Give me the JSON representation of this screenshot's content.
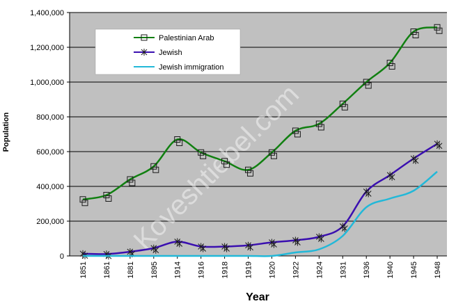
{
  "chart_data": {
    "type": "line",
    "title": "",
    "xlabel": "Year",
    "ylabel": "Population",
    "categories": [
      "1851",
      "1861",
      "1881",
      "1895",
      "1914",
      "1916",
      "1918",
      "1919",
      "1920",
      "1922",
      "1924",
      "1931",
      "1936",
      "1940",
      "1945",
      "1948"
    ],
    "ylim": [
      0,
      1400000
    ],
    "yticks": [
      "0",
      "200,000",
      "400,000",
      "600,000",
      "800,000",
      "1,000,000",
      "1,200,000",
      "1,400,000"
    ],
    "grid": true,
    "legend_position": "top-left",
    "series": [
      {
        "name": "Palestinian Arab",
        "color": "#118011",
        "marker": "square",
        "values": [
          325000,
          350000,
          440000,
          515000,
          670000,
          595000,
          545000,
          495000,
          595000,
          720000,
          760000,
          875000,
          1000000,
          1110000,
          1290000,
          1315000
        ]
      },
      {
        "name": "Jewish",
        "color": "#3a0fb0",
        "marker": "asterisk",
        "values": [
          13000,
          11000,
          24000,
          45000,
          82000,
          54000,
          54000,
          61000,
          78000,
          90000,
          110000,
          170000,
          370000,
          465000,
          560000,
          645000
        ]
      },
      {
        "name": "Jewish immigration",
        "color": "#22b8d8",
        "marker": "none",
        "values": [
          0,
          0,
          0,
          0,
          0,
          0,
          0,
          0,
          0,
          20000,
          38000,
          115000,
          280000,
          330000,
          375000,
          485000
        ]
      }
    ],
    "watermark": "Koveshtiebel.com"
  }
}
